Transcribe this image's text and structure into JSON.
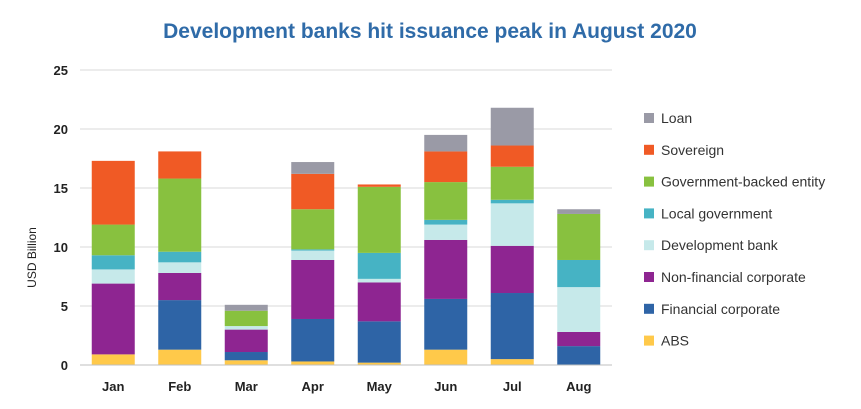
{
  "chart_data": {
    "type": "bar",
    "stacked": true,
    "title": "Development banks hit issuance peak in August 2020",
    "ylabel": "USD Billion",
    "xlabel": "",
    "ylim": [
      0,
      25
    ],
    "yticks": [
      0,
      5,
      10,
      15,
      20,
      25
    ],
    "grid": true,
    "legend_position": "right",
    "categories": [
      "Jan",
      "Feb",
      "Mar",
      "Apr",
      "May",
      "Jun",
      "Jul",
      "Aug"
    ],
    "series": [
      {
        "name": "ABS",
        "color": "#ffc94a",
        "values": [
          0.9,
          1.3,
          0.4,
          0.3,
          0.2,
          1.3,
          0.5,
          0.0
        ]
      },
      {
        "name": "Financial corporate",
        "color": "#2e64a6",
        "values": [
          0.0,
          4.2,
          0.7,
          3.6,
          3.5,
          4.3,
          5.6,
          1.6
        ]
      },
      {
        "name": "Non-financial corporate",
        "color": "#8e2591",
        "values": [
          6.0,
          2.3,
          1.9,
          5.0,
          3.3,
          5.0,
          4.0,
          1.2
        ]
      },
      {
        "name": "Development bank",
        "color": "#c6e9ea",
        "values": [
          1.2,
          0.9,
          0.3,
          0.8,
          0.3,
          1.3,
          3.6,
          3.8
        ]
      },
      {
        "name": "Local government",
        "color": "#46b3c4",
        "values": [
          1.2,
          0.9,
          0.0,
          0.1,
          2.2,
          0.4,
          0.3,
          2.3
        ]
      },
      {
        "name": "Government-backed entity",
        "color": "#88c13f",
        "values": [
          2.6,
          6.2,
          1.3,
          3.4,
          5.6,
          3.2,
          2.8,
          3.9
        ]
      },
      {
        "name": "Sovereign",
        "color": "#f05a25",
        "values": [
          5.4,
          2.3,
          0.0,
          3.0,
          0.2,
          2.6,
          1.8,
          0.0
        ]
      },
      {
        "name": "Loan",
        "color": "#9a9aa6",
        "values": [
          0.0,
          0.0,
          0.5,
          1.0,
          0.0,
          1.4,
          3.2,
          0.4
        ]
      }
    ]
  }
}
